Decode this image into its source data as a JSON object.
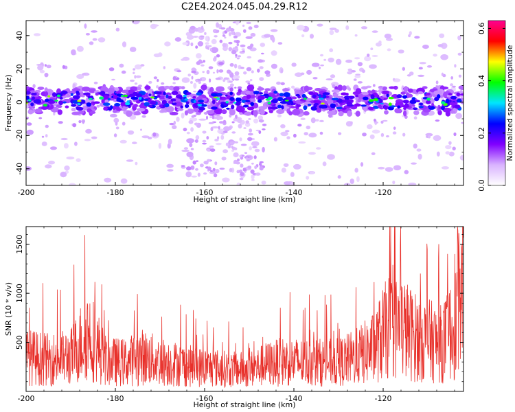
{
  "page": {
    "title": "C2E4.2024.045.04.29.R12"
  },
  "chart_data": [
    {
      "type": "heatmap",
      "xlabel": "Height of straight line (km)",
      "ylabel": "Frequency (Hz)",
      "xlim": [
        -200,
        -102
      ],
      "ylim": [
        -50,
        49
      ],
      "xticks": [
        -200,
        -180,
        -160,
        -140,
        -120
      ],
      "yticks": [
        -40,
        -20,
        0,
        20,
        40
      ],
      "grid": false,
      "colorbar": {
        "label": "Normalized spectral amplitude",
        "range": [
          0.0,
          0.63
        ],
        "ticks": [
          0.0,
          0.2,
          0.4,
          0.6
        ],
        "colors": [
          "#ffffff",
          "#d9b3ff",
          "#8000ff",
          "#0000ff",
          "#00e5ff",
          "#00ff00",
          "#ffff00",
          "#ff0000",
          "#ff0090"
        ]
      },
      "band": {
        "center_freq": 1,
        "half_width": 5
      }
    },
    {
      "type": "line",
      "xlabel": "Height of straight line (km)",
      "ylabel": "SNR (10 * v/v)",
      "xlim": [
        -200,
        -102
      ],
      "ylim": [
        0,
        1680
      ],
      "xticks": [
        -200,
        -180,
        -160,
        -140,
        -120
      ],
      "yticks": [
        500,
        1000,
        1500
      ],
      "line_color": "#e8302a",
      "series": [
        {
          "x": [
            -200,
            -195,
            -190,
            -186,
            -182,
            -178,
            -174,
            -170,
            -166,
            -162,
            -158,
            -154,
            -150,
            -146,
            -142,
            -138,
            -134,
            -130,
            -126,
            -122,
            -119,
            -116,
            -113,
            -110,
            -107,
            -104,
            -103
          ],
          "values": [
            380,
            350,
            380,
            650,
            330,
            320,
            380,
            330,
            300,
            270,
            260,
            240,
            240,
            300,
            330,
            320,
            320,
            320,
            380,
            480,
            700,
            720,
            600,
            560,
            520,
            700,
            1150
          ]
        }
      ]
    }
  ]
}
